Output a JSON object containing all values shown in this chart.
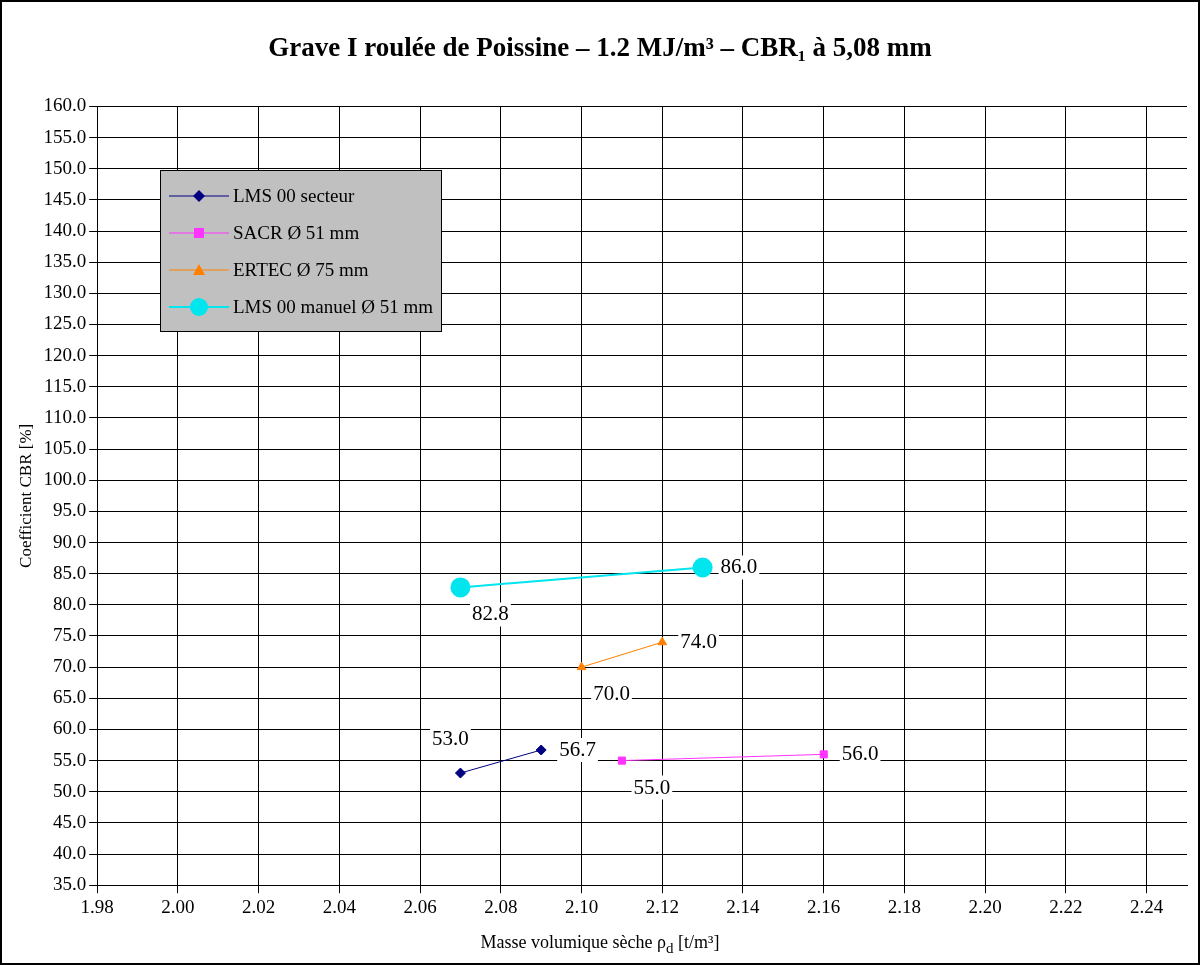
{
  "chart_data": {
    "type": "line",
    "title": "Grave I roulée de Poissine  –  1.2 MJ/m³  –  CBR₁ à 5,08 mm",
    "xlabel": "Masse volumique sèche ρ$_{d}$ [t/m³]",
    "ylabel": "Coefficient CBR [%]",
    "series": [
      {
        "name": "LMS 00 secteur",
        "color": "#000080",
        "marker": "diamond",
        "x": [
          2.07,
          2.09
        ],
        "values": [
          53.0,
          56.7
        ],
        "value_labels": [
          "53.0",
          "56.7"
        ]
      },
      {
        "name": "SACR Ø 51 mm",
        "color": "#ff33ff",
        "marker": "square",
        "x": [
          2.11,
          2.16
        ],
        "values": [
          55.0,
          56.0
        ],
        "value_labels": [
          "55.0",
          "56.0"
        ]
      },
      {
        "name": "ERTEC Ø 75 mm",
        "color": "#ff8000",
        "marker": "triangle",
        "x": [
          2.1,
          2.12
        ],
        "values": [
          70.0,
          74.0
        ],
        "value_labels": [
          "70.0",
          "74.0"
        ]
      },
      {
        "name": "LMS 00 manuel Ø 51 mm",
        "color": "#00e5ee",
        "marker": "circle",
        "x": [
          2.07,
          2.13
        ],
        "values": [
          82.8,
          86.0
        ],
        "value_labels": [
          "82.8",
          "86.0"
        ]
      }
    ],
    "xlim": [
      1.98,
      2.25
    ],
    "xticks": [
      {
        "value": 1.98,
        "label": "1.98"
      },
      {
        "value": 2.0,
        "label": "2.00"
      },
      {
        "value": 2.02,
        "label": "2.02"
      },
      {
        "value": 2.04,
        "label": "2.04"
      },
      {
        "value": 2.06,
        "label": "2.06"
      },
      {
        "value": 2.08,
        "label": "2.08"
      },
      {
        "value": 2.1,
        "label": "2.10"
      },
      {
        "value": 2.12,
        "label": "2.12"
      },
      {
        "value": 2.14,
        "label": "2.14"
      },
      {
        "value": 2.16,
        "label": "2.16"
      },
      {
        "value": 2.18,
        "label": "2.18"
      },
      {
        "value": 2.2,
        "label": "2.20"
      },
      {
        "value": 2.22,
        "label": "2.22"
      },
      {
        "value": 2.24,
        "label": "2.24"
      }
    ],
    "ylim": [
      35,
      160
    ],
    "yticks": [
      {
        "value": 35,
        "label": "35.0"
      },
      {
        "value": 40,
        "label": "40.0"
      },
      {
        "value": 45,
        "label": "45.0"
      },
      {
        "value": 50,
        "label": "50.0"
      },
      {
        "value": 55,
        "label": "55.0"
      },
      {
        "value": 60,
        "label": "60.0"
      },
      {
        "value": 65,
        "label": "65.0"
      },
      {
        "value": 70,
        "label": "70.0"
      },
      {
        "value": 75,
        "label": "75.0"
      },
      {
        "value": 80,
        "label": "80.0"
      },
      {
        "value": 85,
        "label": "85.0"
      },
      {
        "value": 90,
        "label": "90.0"
      },
      {
        "value": 95,
        "label": "95.0"
      },
      {
        "value": 100,
        "label": "100.0"
      },
      {
        "value": 105,
        "label": "105.0"
      },
      {
        "value": 110,
        "label": "110.0"
      },
      {
        "value": 115,
        "label": "115.0"
      },
      {
        "value": 120,
        "label": "120.0"
      },
      {
        "value": 125,
        "label": "125.0"
      },
      {
        "value": 130,
        "label": "130.0"
      },
      {
        "value": 135,
        "label": "135.0"
      },
      {
        "value": 140,
        "label": "140.0"
      },
      {
        "value": 145,
        "label": "145.0"
      },
      {
        "value": 150,
        "label": "150.0"
      },
      {
        "value": 155,
        "label": "155.0"
      },
      {
        "value": 160,
        "label": "160.0"
      }
    ],
    "grid": true,
    "legend": "top left"
  }
}
